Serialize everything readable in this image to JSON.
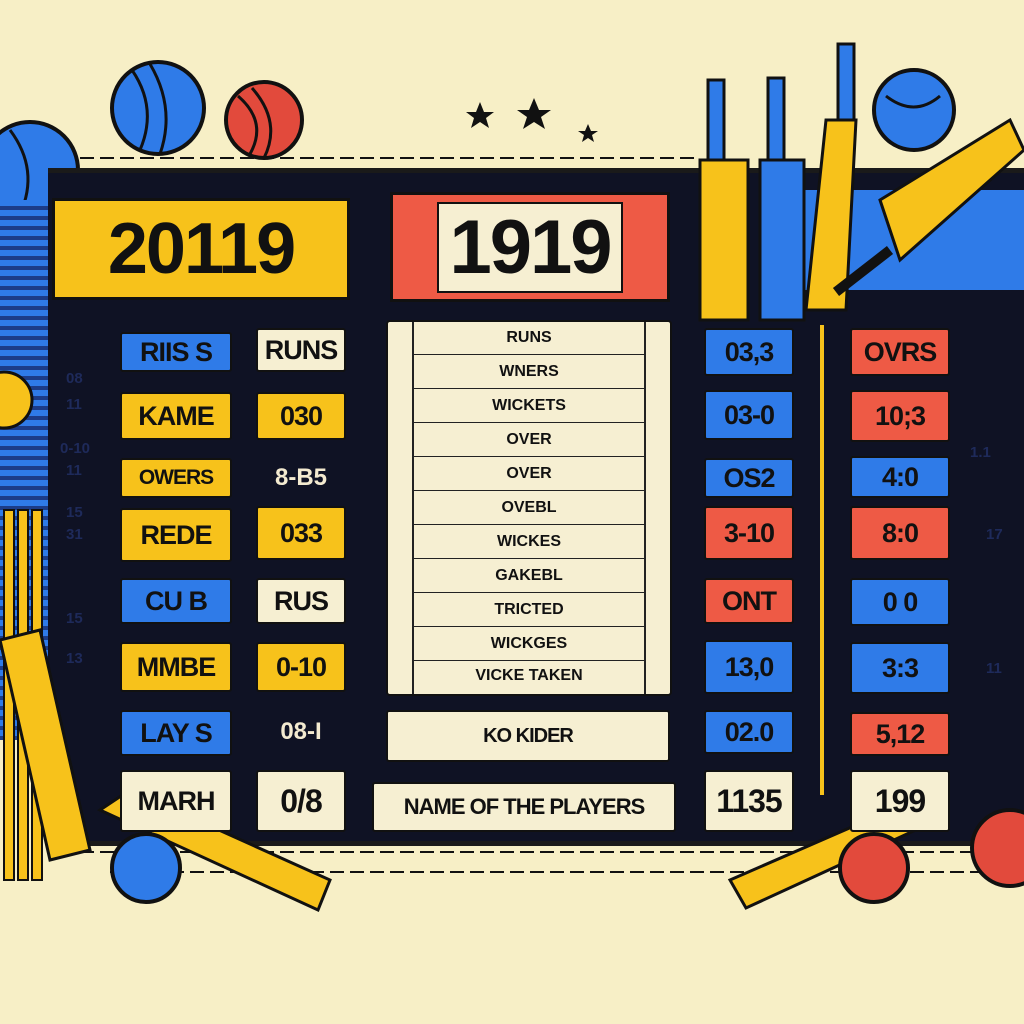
{
  "banners": {
    "left_year": "20119",
    "center_year": "1919"
  },
  "left_labels": [
    "RIIS S",
    "KAME",
    "OWERS",
    "REDE",
    "CU B",
    "MMBE",
    "LAY S",
    "MARH"
  ],
  "left_values": [
    "RUNS",
    "030",
    "8-B5",
    "033",
    "RUS",
    "0-10",
    "08-I",
    "0/8"
  ],
  "list_rows": [
    "RUNS",
    "WNERS",
    "WICKETS",
    "OVER",
    "OVER",
    "OVEBL",
    "WICKES",
    "GAKEBL",
    "TRICTED",
    "WICKGES",
    "VICKE TAKEN"
  ],
  "sub_box": "KO KIDER",
  "footer_box": "NAME OF THE PLAYERS",
  "right_col1": [
    "03,3",
    "03-0",
    "OS2",
    "3-10",
    "ONT",
    "13,0",
    "02.0",
    "1135"
  ],
  "right_col2": [
    "OVRS",
    "10;3",
    "4:0",
    "8:0",
    "0 0",
    "3:3",
    "5,12",
    "199"
  ],
  "side_marks_left": [
    "08",
    "11",
    "0-10",
    "11",
    "15",
    "31",
    "15",
    "13"
  ],
  "side_marks_right": [
    "1.1",
    "17",
    "11"
  ],
  "colors": {
    "yellow": "#f7c21b",
    "blue": "#2f7be8",
    "red": "#ee5a45",
    "cream": "#f6efd2",
    "board": "#0f1224"
  }
}
